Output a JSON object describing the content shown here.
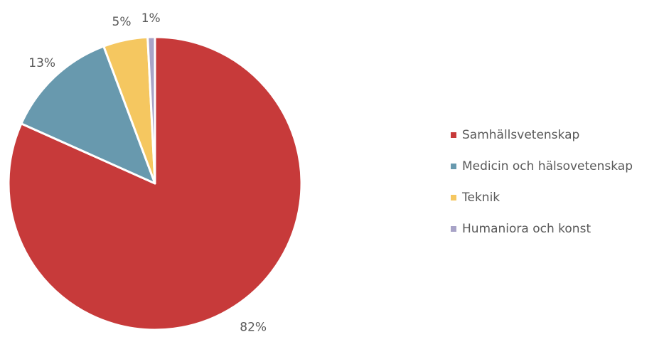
{
  "chart_data": {
    "type": "pie",
    "title": "",
    "categories": [
      "Samhällsvetenskap",
      "Medicin och hälsovetenskap",
      "Teknik",
      "Humaniora och konst"
    ],
    "values": [
      81.7,
      12.6,
      4.9,
      0.8
    ],
    "labels": [
      "82%",
      "13%",
      "5%",
      "1%"
    ],
    "colors": [
      "#C73A3A",
      "#6899AE",
      "#F5C760",
      "#A8A3C7"
    ],
    "legend": "right"
  }
}
